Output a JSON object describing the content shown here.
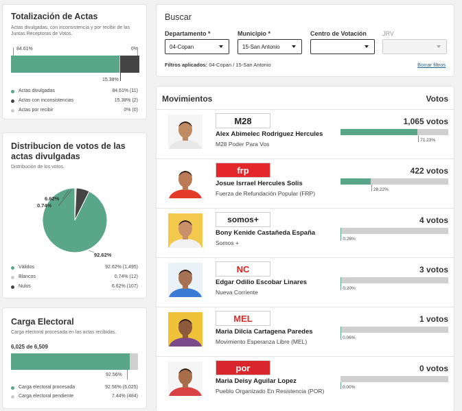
{
  "totalizacion": {
    "title": "Totalización de Actas",
    "subtitle": "Actas divulgadas, con inconsistencia y por recibir de las Juntas Receptoras de Votos.",
    "pct_left": "84.61%",
    "pct_right": "0%",
    "pct_under": "15.38%",
    "bar": [
      0.8461,
      0.1538,
      0
    ],
    "legend": [
      {
        "label": "Actas divulgadas",
        "value": "84.61% (11)",
        "color": "#5aa68a"
      },
      {
        "label": "Actas con inconsistencias",
        "value": "15.38% (2)",
        "color": "#444444"
      },
      {
        "label": "Actas por recibir",
        "value": "0% (0)",
        "color": "#cccccc"
      }
    ]
  },
  "distribucion": {
    "title": "Distribucion de votos de las actas divulgadas",
    "subtitle": "Distribución de los votos.",
    "chart_data": {
      "type": "pie",
      "labels": [
        "Válidos",
        "Blancos",
        "Nulos"
      ],
      "values": [
        92.62,
        0.74,
        6.62
      ],
      "colors": [
        "#5aa68a",
        "#cccccc",
        "#444444"
      ],
      "slice_labels": [
        "92.62%",
        "0.74%",
        "6.62%"
      ]
    },
    "legend": [
      {
        "label": "Válidos",
        "value": "92.62% (1,495)",
        "color": "#5aa68a"
      },
      {
        "label": "Blancos",
        "value": "0.74% (12)",
        "color": "#cccccc"
      },
      {
        "label": "Nulos",
        "value": "6.62% (107)",
        "color": "#444444"
      }
    ]
  },
  "carga": {
    "title": "Carga Electoral",
    "subtitle": "Carga electoral procesada en las actas recibidas.",
    "count": "6,025 de 6,509",
    "fraction": 0.9256,
    "pct_under": "92.56%",
    "legend": [
      {
        "label": "Carga electoral procesada",
        "value": "92.56% (6,025)",
        "color": "#5aa68a"
      },
      {
        "label": "Carga electoral pendiente",
        "value": "7.44% (484)",
        "color": "#cccccc"
      }
    ]
  },
  "buscar": {
    "title": "Buscar",
    "departamento_label": "Departamento *",
    "departamento_value": "04-Copan",
    "municipio_label": "Municipio *",
    "municipio_value": "15-San Antonio",
    "centro_label": "Centro de Votación",
    "centro_value": "",
    "jrv_label": "JRV",
    "jrv_value": "",
    "filtros_label": "Filtros aplicados:",
    "filtros_value": "04-Copan / 15-San Antonio",
    "borrar": "Borrar filtros"
  },
  "movimientos": {
    "title": "Movimientos",
    "votes_header": "Votos",
    "candidates": [
      {
        "name": "Alex Abimelec Rodriguez Hercules",
        "party": "M28 Poder Para Vos",
        "logo": "M28",
        "logo_bg": "#ffffff",
        "logo_color": "#222222",
        "votes": "1,065 votos",
        "fraction": 0.7123,
        "pct": "71.23%",
        "skin": "#c08a62",
        "shirt": "#e8e8e8",
        "bg": "#f5f5f5"
      },
      {
        "name": "Josue Isrrael Hercules Solis",
        "party": "Fuerza de Refundación Popular (FRP)",
        "logo": "frp",
        "logo_bg": "#e3262a",
        "logo_color": "#ffffff",
        "votes": "422 votos",
        "fraction": 0.2822,
        "pct": "28.22%",
        "skin": "#b97a55",
        "shirt": "#e23b2a",
        "bg": "#ffffff"
      },
      {
        "name": "Bony Kenide Castañeda España",
        "party": "Somos +",
        "logo": "somos+",
        "logo_bg": "#ffffff",
        "logo_color": "#222222",
        "votes": "4 votos",
        "fraction": 0.0026,
        "pct": "0.26%",
        "skin": "#c9906a",
        "shirt": "#f1f1f1",
        "bg": "#f2c94c"
      },
      {
        "name": "Edgar Odilio Escobar Linares",
        "party": "Nueva Corriente",
        "logo": "NC",
        "logo_bg": "#ffffff",
        "logo_color": "#d22",
        "votes": "3 votos",
        "fraction": 0.002,
        "pct": "0.20%",
        "skin": "#a87355",
        "shirt": "#3a7bd5",
        "bg": "#e9f2f7"
      },
      {
        "name": "Maria Dilcia Cartagena Paredes",
        "party": "Movimiento Esperanza Libre (MEL)",
        "logo": "MEL",
        "logo_bg": "#ffffff",
        "logo_color": "#d32f2f",
        "votes": "1 votos",
        "fraction": 0.0006,
        "pct": "0.06%",
        "skin": "#8d5a3b",
        "shirt": "#7a4a8a",
        "bg": "#f0c23a"
      },
      {
        "name": "Maria Deisy Aguilar Lopez",
        "party": "Pueblo Organizado En Resistencia (POR)",
        "logo": "por",
        "logo_bg": "#d9262c",
        "logo_color": "#ffffff",
        "votes": "0 votos",
        "fraction": 0,
        "pct": "0.00%",
        "skin": "#a86e4a",
        "shirt": "#d94242",
        "bg": "#f5f5f5"
      }
    ]
  }
}
